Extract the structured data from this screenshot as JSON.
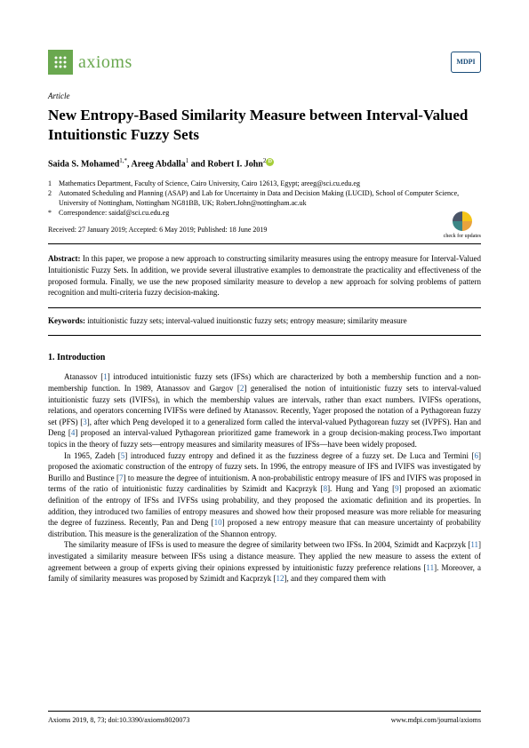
{
  "header": {
    "journal_name": "axioms",
    "publisher": "MDPI"
  },
  "article": {
    "type": "Article",
    "title": "New Entropy-Based Similarity Measure between Interval-Valued Intuitionstic Fuzzy Sets",
    "authors_html": "Saida S. Mohamed",
    "author1_sup": "1,*",
    "author2": ", Areeg Abdalla",
    "author2_sup": "1",
    "author3": " and Robert I. John",
    "author3_sup": "2"
  },
  "affiliations": [
    {
      "num": "1",
      "text": "Mathematics Department, Faculty of Science, Cairo University, Cairo 12613, Egypt; areeg@sci.cu.edu.eg"
    },
    {
      "num": "2",
      "text": "Automated Scheduling and Planning (ASAP) and Lab for Uncertainty in Data and Decision Making (LUCID), School of Computer Science, University of Nottingham, Nottingham NG81BB, UK; Robert.John@nottingham.ac.uk"
    },
    {
      "num": "*",
      "text": "Correspondence: saidaf@sci.cu.edu.eg"
    }
  ],
  "dates": "Received: 27 January 2019; Accepted: 6 May 2019; Published: 18 June 2019",
  "check_updates": "check for updates",
  "abstract_label": "Abstract:",
  "abstract": " In this paper, we propose a new approach to constructing similarity measures using the entropy measure for Interval-Valued Intuitionistic Fuzzy Sets. In addition, we provide several illustrative examples to demonstrate the practicality and effectiveness of the proposed formula. Finally, we use the new proposed similarity measure to develop a new approach for solving problems of pattern recognition and multi-criteria fuzzy decision-making.",
  "keywords_label": "Keywords:",
  "keywords": " intuitionistic fuzzy sets; interval-valued inuitionstic fuzzy sets; entropy measure; similarity measure",
  "section1": "1. Introduction",
  "para1": "Atanassov [1] introduced intuitionistic fuzzy sets (IFSs) which are characterized by both a membership function and a non-membership function. In 1989, Atanassov and Gargov [2] generalised the notion of intuitionistic fuzzy sets to interval-valued intuitionistic fuzzy sets (IVIFSs), in which the membership values are intervals, rather than exact numbers. IVIFSs operations, relations, and operators concerning IVIFSs were defined by Atanassov. Recently, Yager proposed the notation of a Pythagorean fuzzy set (PFS) [3], after which Peng developed it to a generalized form called the interval-valued Pythagorean fuzzy set (IVPFS). Han and Deng [4] proposed an interval-valued Pythagorean prioritized game framework in a group decision-making process.Two important topics in the theory of fuzzy sets—entropy measures and similarity measures of IFSs—have been widely proposed.",
  "para2": "In 1965, Zadeh [5] introduced fuzzy entropy and defined it as the fuzziness degree of a fuzzy set. De Luca and Termini [6] proposed the axiomatic construction of the entropy of fuzzy sets. In 1996, the entropy measure of IFS and IVIFS was investigated by Burillo and Bustince [7] to measure the degree of intuitionism. A non-probabilistic entropy measure of IFS and IVIFS was proposed in terms of the ratio of intuitionistic fuzzy cardinalities by Szimidt and Kacprzyk [8]. Hung and Yang [9] proposed an axiomatic definition of the entropy of IFSs and IVFSs using probability, and they proposed the axiomatic definition and its properties. In addition, they introduced two families of entropy measures and showed how their proposed measure was more reliable for measuring the degree of fuzziness. Recently, Pan and Deng [10] proposed a new entropy measure that can measure uncertainty of probability distribution. This measure is the generalization of the Shannon entropy.",
  "para3": "The similarity measure of IFSs is used to measure the degree of similarity between two IFSs. In 2004, Szimidt and Kacprzyk [11] investigated a similarity measure between IFSs using a distance measure. They applied the new measure to assess the extent of agreement between a group of experts giving their opinions expressed by intuitionistic fuzzy preference relations [11]. Moreover, a family of similarity measures was proposed by Szimidt and Kacprzyk [12], and they compared them with",
  "footer": {
    "left": "Axioms 2019, 8, 73; doi:10.3390/axioms8020073",
    "right": "www.mdpi.com/journal/axioms"
  },
  "refs": {
    "colors": {
      "link": "#3070b0"
    }
  }
}
